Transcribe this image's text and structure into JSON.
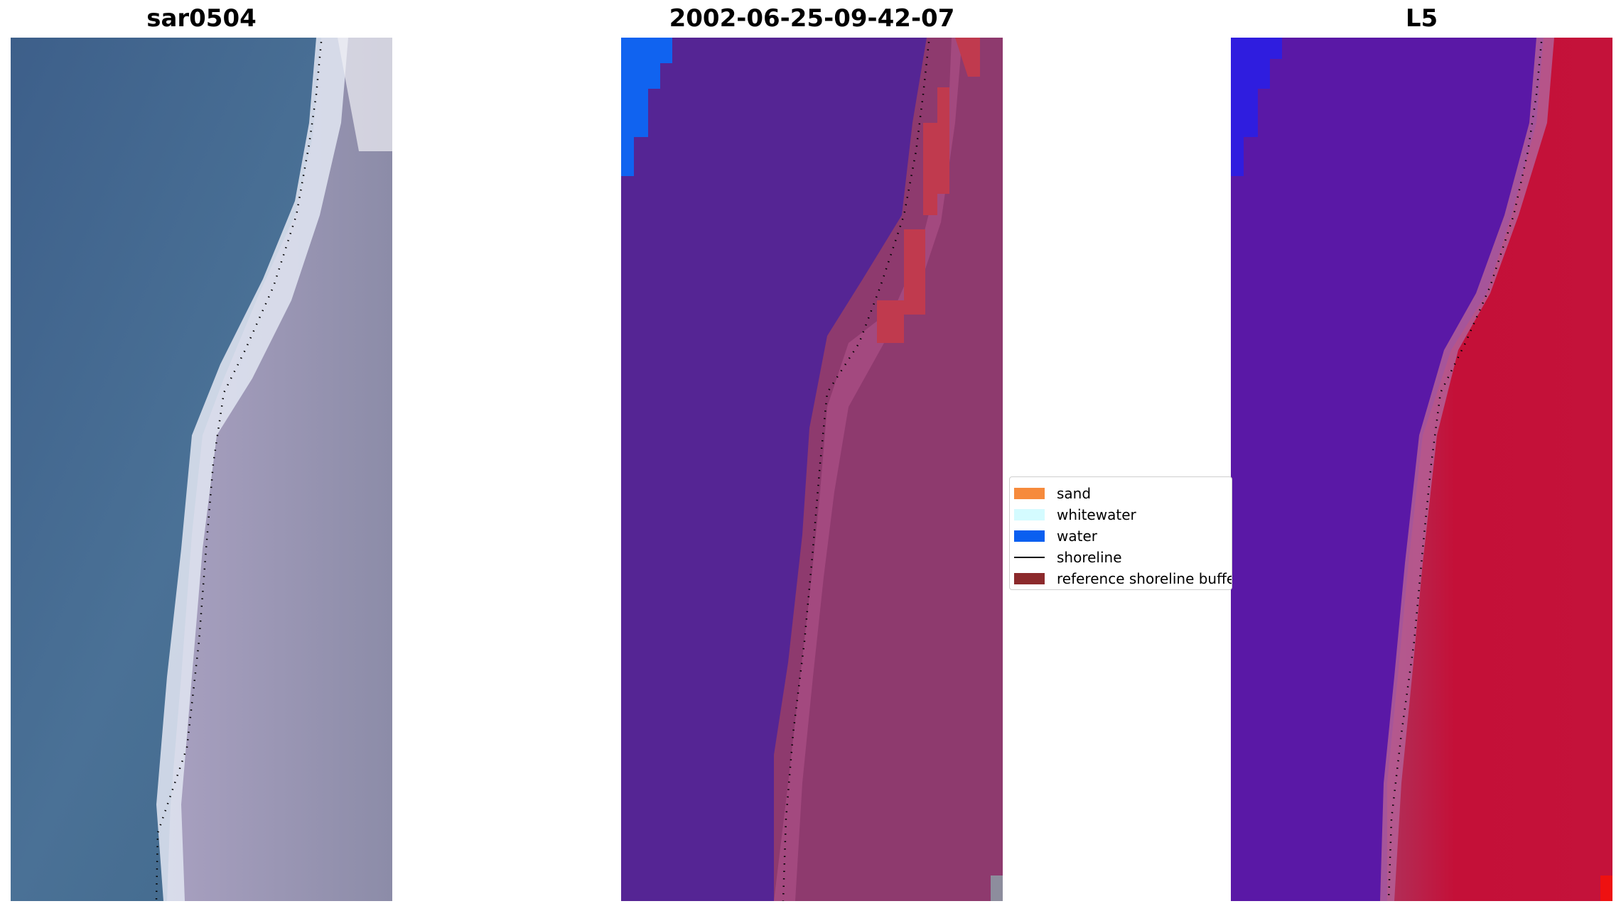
{
  "panels": [
    {
      "title": "sar0504",
      "view": "rgb-image"
    },
    {
      "title": "2002-06-25-09-42-07",
      "view": "classified-image"
    },
    {
      "title": "L5",
      "view": "index-image"
    }
  ],
  "legend": {
    "items": [
      {
        "label": "sand",
        "color": "#f68a3c",
        "kind": "patch"
      },
      {
        "label": "whitewater",
        "color": "#d4fbff",
        "kind": "patch"
      },
      {
        "label": "water",
        "color": "#0a5ff0",
        "kind": "patch"
      },
      {
        "label": "shoreline",
        "color": "#000000",
        "kind": "line"
      },
      {
        "label": "reference shoreline buffer",
        "color": "#8c2a2c",
        "kind": "patch"
      }
    ]
  },
  "colors": {
    "ocean_rgb": "#44698f",
    "beach_rgb": "#9c90aa",
    "whitewater_rgb": "#dde6f0",
    "ocean_class": "#552594",
    "beach_class": "#8e3a6e",
    "buffer_class": "#c03a4e",
    "water_class": "#1063f0",
    "ocean_index": "#5a18a6",
    "beach_index": "#c4123a"
  }
}
